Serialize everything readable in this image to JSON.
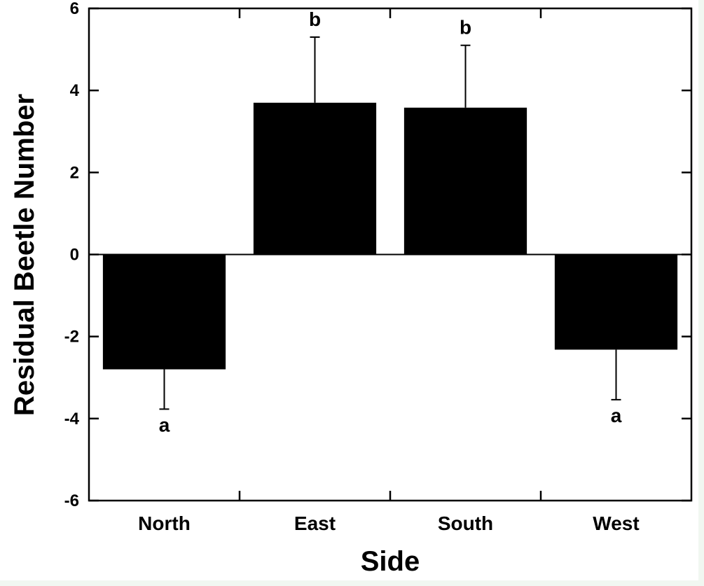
{
  "chart_data": {
    "type": "bar",
    "title": "",
    "xlabel": "Side",
    "ylabel": "Residual Beetle Number",
    "categories": [
      "North",
      "East",
      "South",
      "West"
    ],
    "values": [
      -2.8,
      3.7,
      3.58,
      -2.32
    ],
    "error_bars": [
      0.97,
      1.6,
      1.52,
      1.22
    ],
    "significance_letters": [
      "a",
      "b",
      "b",
      "a"
    ],
    "ylim": [
      -6,
      6
    ],
    "yticks": [
      -6,
      -4,
      -2,
      0,
      2,
      4,
      6
    ],
    "ytick_labels": [
      "-6",
      "-4",
      "-2",
      "0",
      "2",
      "4",
      "6"
    ],
    "bar_color": "#000000",
    "grid": false,
    "legend": "none"
  }
}
